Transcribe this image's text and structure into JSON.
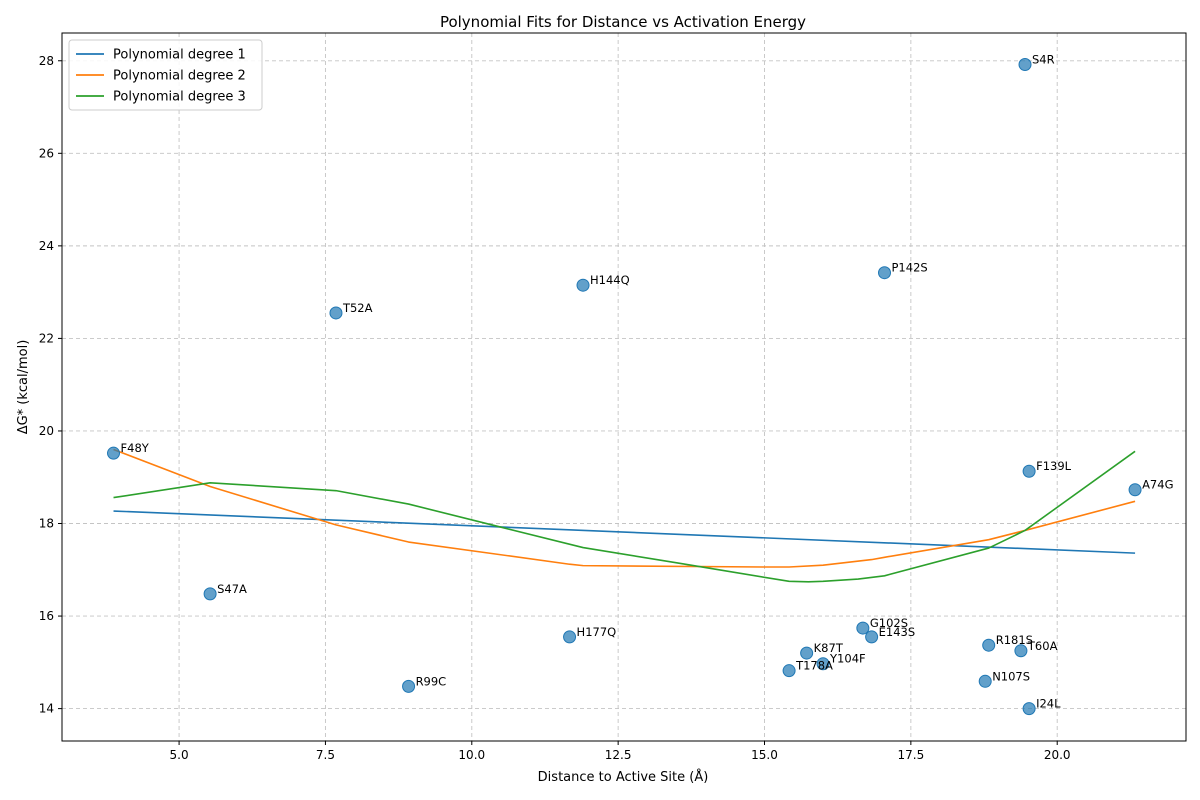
{
  "chart_data": {
    "type": "scatter",
    "title": "Polynomial Fits for Distance vs Activation Energy",
    "xlabel": "Distance to Active Site (Å)",
    "ylabel": "ΔG* (kcal/mol)",
    "xlim": [
      3.0,
      22.2
    ],
    "ylim": [
      13.3,
      28.6
    ],
    "xticks": [
      "5.0",
      "7.5",
      "10.0",
      "12.5",
      "15.0",
      "17.5",
      "20.0"
    ],
    "yticks": [
      "14",
      "16",
      "18",
      "20",
      "22",
      "24",
      "26",
      "28"
    ],
    "grid": true,
    "legend_position": "top-left",
    "point_color": "#1f77b4",
    "points": [
      {
        "label": "S4R",
        "x": 19.45,
        "y": 27.92
      },
      {
        "label": "P142S",
        "x": 17.05,
        "y": 23.42
      },
      {
        "label": "H144Q",
        "x": 11.9,
        "y": 23.15
      },
      {
        "label": "T52A",
        "x": 7.68,
        "y": 22.55
      },
      {
        "label": "F48Y",
        "x": 3.88,
        "y": 19.52
      },
      {
        "label": "F139L",
        "x": 19.52,
        "y": 19.13
      },
      {
        "label": "A74G",
        "x": 21.33,
        "y": 18.73
      },
      {
        "label": "S47A",
        "x": 5.53,
        "y": 16.48
      },
      {
        "label": "G102S",
        "x": 16.68,
        "y": 15.74
      },
      {
        "label": "E143S",
        "x": 16.83,
        "y": 15.55
      },
      {
        "label": "H177Q",
        "x": 11.67,
        "y": 15.55
      },
      {
        "label": "R181S",
        "x": 18.83,
        "y": 15.37
      },
      {
        "label": "T60A",
        "x": 19.38,
        "y": 15.25
      },
      {
        "label": "K87T",
        "x": 15.72,
        "y": 15.2
      },
      {
        "label": "Y104F",
        "x": 16.0,
        "y": 14.97
      },
      {
        "label": "T178A",
        "x": 15.42,
        "y": 14.82
      },
      {
        "label": "N107S",
        "x": 18.77,
        "y": 14.59
      },
      {
        "label": "R99C",
        "x": 8.92,
        "y": 14.48
      },
      {
        "label": "I24L",
        "x": 19.52,
        "y": 14.0
      }
    ],
    "series": [
      {
        "name": "Polynomial degree 1",
        "color": "#1f77b4",
        "x": [
          3.88,
          21.33
        ],
        "y": [
          18.27,
          17.36
        ]
      },
      {
        "name": "Polynomial degree 2",
        "color": "#ff7f0e",
        "x": [
          3.88,
          5.53,
          7.68,
          8.92,
          11.67,
          11.9,
          15.0,
          15.42,
          16.0,
          16.83,
          17.05,
          18.83,
          19.45,
          21.33
        ],
        "y": [
          19.6,
          18.8,
          17.97,
          17.6,
          17.12,
          17.09,
          17.06,
          17.06,
          17.1,
          17.22,
          17.27,
          17.65,
          17.85,
          18.48
        ]
      },
      {
        "name": "Polynomial degree 3",
        "color": "#2ca02c",
        "x": [
          3.88,
          5.53,
          7.68,
          8.92,
          10.5,
          11.9,
          13.5,
          15.42,
          15.75,
          16.0,
          16.6,
          17.05,
          18.83,
          19.45,
          21.33
        ],
        "y": [
          18.56,
          18.88,
          18.71,
          18.42,
          17.92,
          17.48,
          17.15,
          16.75,
          16.74,
          16.75,
          16.8,
          16.87,
          17.47,
          17.85,
          19.56
        ]
      }
    ]
  }
}
